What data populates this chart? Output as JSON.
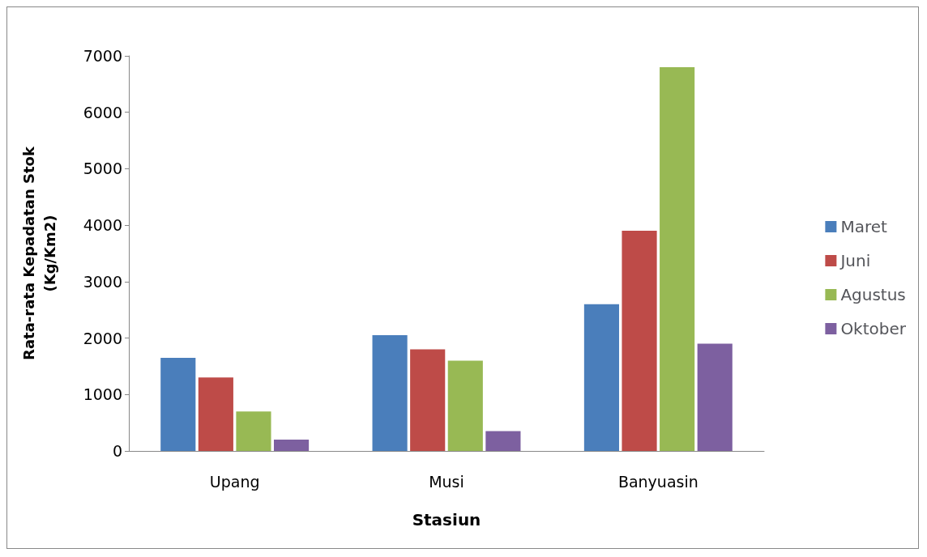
{
  "chart_data": {
    "type": "bar",
    "xlabel": "Stasiun",
    "ylabel": "Rata-rata Kepadatan Stok\n(Kg/Km2)",
    "categories": [
      "Upang",
      "Musi",
      "Banyuasin"
    ],
    "series": [
      {
        "name": "Maret",
        "color": "#4a7ebb",
        "values": [
          1650,
          2050,
          2600
        ]
      },
      {
        "name": "Juni",
        "color": "#be4b48",
        "values": [
          1300,
          1800,
          3900
        ]
      },
      {
        "name": "Agustus",
        "color": "#98b954",
        "values": [
          700,
          1600,
          6800
        ]
      },
      {
        "name": "Oktober",
        "color": "#7d60a0",
        "values": [
          200,
          350,
          1900
        ]
      }
    ],
    "ylim": [
      0,
      7000
    ],
    "yticks": [
      0,
      1000,
      2000,
      3000,
      4000,
      5000,
      6000,
      7000
    ],
    "grid": false,
    "legend": "right"
  }
}
